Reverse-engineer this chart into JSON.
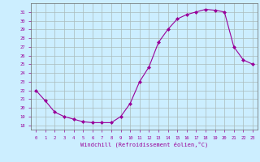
{
  "x": [
    0,
    1,
    2,
    3,
    4,
    5,
    6,
    7,
    8,
    9,
    10,
    11,
    12,
    13,
    14,
    15,
    16,
    17,
    18,
    19,
    20,
    21,
    22,
    23
  ],
  "y": [
    22.0,
    20.8,
    19.5,
    19.0,
    18.7,
    18.4,
    18.3,
    18.3,
    18.3,
    19.0,
    20.5,
    23.0,
    24.7,
    27.5,
    29.0,
    30.2,
    30.7,
    31.0,
    31.3,
    31.2,
    31.0,
    27.0,
    25.5,
    25.0
  ],
  "line_color": "#990099",
  "marker_color": "#990099",
  "bg_color": "#cceeff",
  "grid_color": "#aabbbb",
  "xlabel": "Windchill (Refroidissement éolien,°C)",
  "xlabel_color": "#990099",
  "tick_color": "#990099",
  "ylim": [
    17.5,
    32.0
  ],
  "xlim": [
    -0.5,
    23.5
  ],
  "yticks": [
    18,
    19,
    20,
    21,
    22,
    23,
    24,
    25,
    26,
    27,
    28,
    29,
    30,
    31
  ],
  "xticks": [
    0,
    1,
    2,
    3,
    4,
    5,
    6,
    7,
    8,
    9,
    10,
    11,
    12,
    13,
    14,
    15,
    16,
    17,
    18,
    19,
    20,
    21,
    22,
    23
  ]
}
